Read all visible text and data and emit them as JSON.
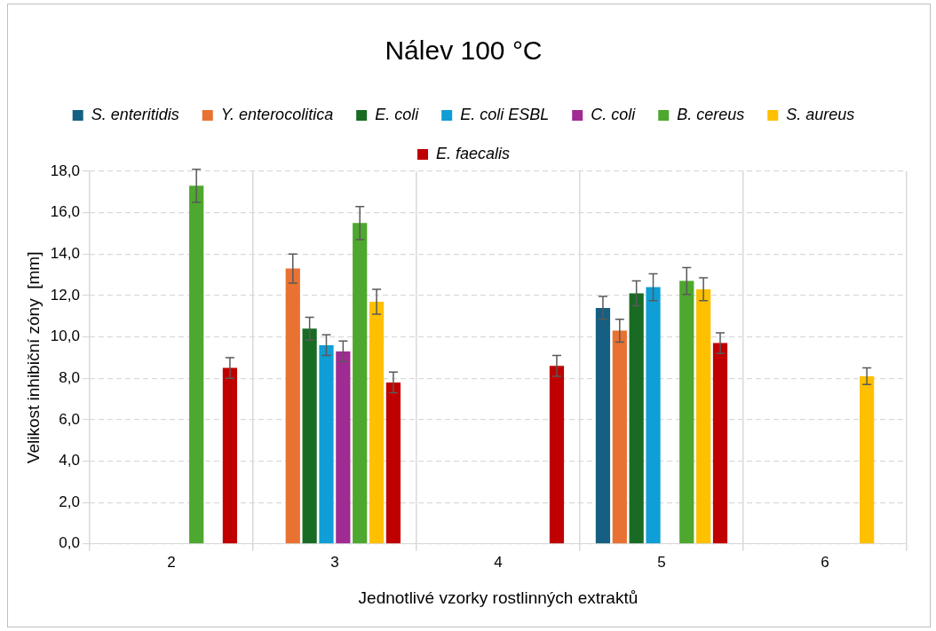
{
  "chart_data": {
    "type": "bar",
    "title": "Nálev 100 °C",
    "xlabel": "Jednotlivé vzorky rostlinných extraktů",
    "ylabel": "Velikost inhibiční zóny  [mm]",
    "categories": [
      "2",
      "3",
      "4",
      "5",
      "6"
    ],
    "series": [
      {
        "name": "S. enteritidis",
        "color": "#156082",
        "values": [
          null,
          null,
          null,
          11.4,
          null
        ],
        "errors": [
          null,
          null,
          null,
          0.55,
          null
        ]
      },
      {
        "name": "Y. enterocolitica",
        "color": "#e97132",
        "values": [
          null,
          13.3,
          null,
          10.3,
          null
        ],
        "errors": [
          null,
          0.7,
          null,
          0.55,
          null
        ]
      },
      {
        "name": "E. coli",
        "color": "#196b24",
        "values": [
          null,
          10.4,
          null,
          12.1,
          null
        ],
        "errors": [
          null,
          0.55,
          null,
          0.6,
          null
        ]
      },
      {
        "name": "E. coli ESBL",
        "color": "#0f9ed5",
        "values": [
          null,
          9.6,
          null,
          12.4,
          null
        ],
        "errors": [
          null,
          0.5,
          null,
          0.65,
          null
        ]
      },
      {
        "name": "C. coli",
        "color": "#a02b93",
        "values": [
          null,
          9.3,
          null,
          null,
          null
        ],
        "errors": [
          null,
          0.5,
          null,
          null,
          null
        ]
      },
      {
        "name": "B. cereus",
        "color": "#4ea72e",
        "values": [
          17.3,
          15.5,
          null,
          12.7,
          null
        ],
        "errors": [
          0.8,
          0.8,
          null,
          0.65,
          null
        ]
      },
      {
        "name": "S. aureus",
        "color": "#ffc000",
        "values": [
          null,
          11.7,
          null,
          12.3,
          8.1
        ],
        "errors": [
          null,
          0.6,
          null,
          0.55,
          0.4
        ]
      },
      {
        "name": "E. faecalis",
        "color": "#c00000",
        "values": [
          8.5,
          7.8,
          8.6,
          9.7,
          null
        ],
        "errors": [
          0.5,
          0.5,
          0.5,
          0.5,
          null
        ]
      }
    ],
    "ylim": [
      0,
      18
    ],
    "yticks": [
      {
        "value": 0,
        "label": "0,0"
      },
      {
        "value": 2,
        "label": "2,0"
      },
      {
        "value": 4,
        "label": "4,0"
      },
      {
        "value": 6,
        "label": "6,0"
      },
      {
        "value": 8,
        "label": "8,0"
      },
      {
        "value": 10,
        "label": "10,0"
      },
      {
        "value": 12,
        "label": "12,0"
      },
      {
        "value": 14,
        "label": "14,0"
      },
      {
        "value": 16,
        "label": "16,0"
      },
      {
        "value": 18,
        "label": "18,0"
      }
    ],
    "grid": true,
    "legend": "top"
  }
}
